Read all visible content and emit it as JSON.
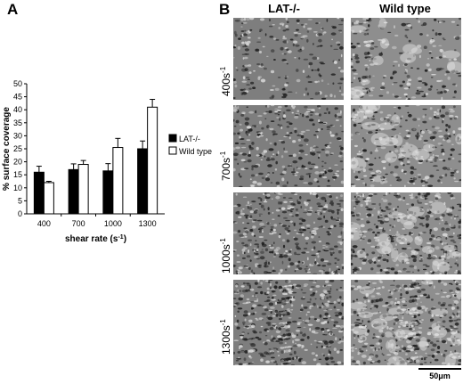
{
  "panel_a": {
    "letter": "A"
  },
  "panel_b": {
    "letter": "B",
    "columns": [
      "LAT-/-",
      "Wild type"
    ],
    "rows": [
      {
        "base": "400s",
        "exp": "-1"
      },
      {
        "base": "700s",
        "exp": "-1"
      },
      {
        "base": "1000s",
        "exp": "-1"
      },
      {
        "base": "1300s",
        "exp": "-1"
      }
    ],
    "scale_bar": "50μm"
  },
  "chart_data": {
    "type": "bar",
    "title": "",
    "xlabel": "shear rate (s",
    "xlabel_sup": "-1",
    "xlabel_end": ")",
    "ylabel": "% surface coverage",
    "ylim": [
      0,
      50
    ],
    "yticks": [
      0,
      5,
      10,
      15,
      20,
      25,
      30,
      35,
      40,
      45,
      50
    ],
    "categories": [
      "400",
      "700",
      "1000",
      "1300"
    ],
    "legend_position": "right",
    "series": [
      {
        "name": "LAT-/-",
        "color": "#000000",
        "values": [
          16,
          17,
          16.5,
          25
        ],
        "errors": [
          2.3,
          2.2,
          2.8,
          3
        ]
      },
      {
        "name": "Wild type",
        "color": "#ffffff",
        "values": [
          12,
          19,
          25.5,
          41
        ],
        "errors": [
          0.5,
          1.5,
          3.5,
          3
        ]
      }
    ]
  }
}
